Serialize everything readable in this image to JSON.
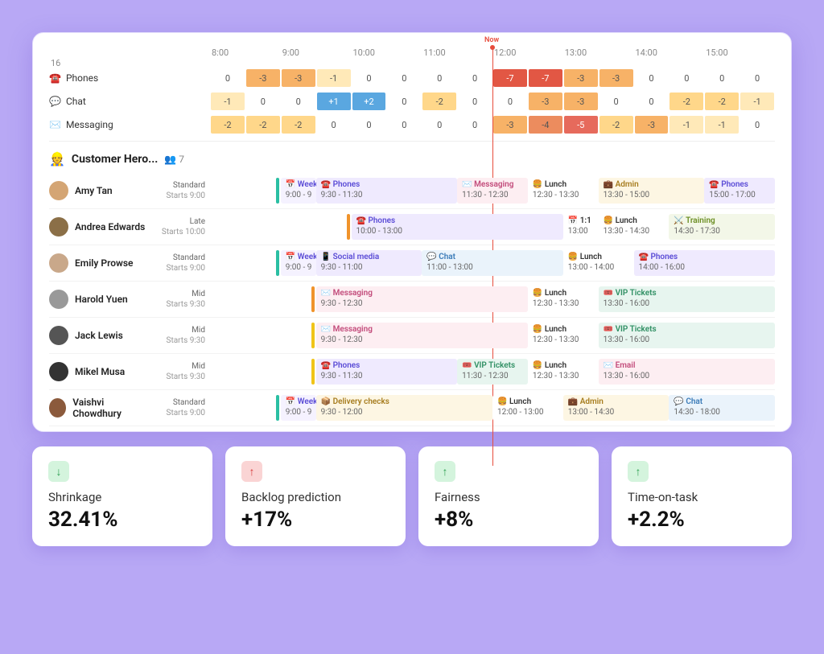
{
  "timeline": {
    "start": 8,
    "end": 16,
    "hours": [
      "8:00",
      "9:00",
      "10:00",
      "11:00",
      "12:00",
      "13:00",
      "14:00",
      "15:00",
      "16"
    ],
    "now_label": "Now",
    "now_pos": 0.5
  },
  "coverage_colors": {
    "zero": "#ffffff",
    "neg1": "#ffe9b8",
    "neg2": "#ffd78a",
    "neg3": "#f7b267",
    "neg5": "#e66a5c",
    "neg7": "#e25744",
    "pos": "#5aa7e0"
  },
  "coverage": [
    {
      "icon": "☎️",
      "label": "Phones",
      "cells": [
        {
          "v": "0"
        },
        {
          "v": "-3",
          "c": "#f7b267"
        },
        {
          "v": "-3",
          "c": "#f7b267"
        },
        {
          "v": "-1",
          "c": "#ffe9b8"
        },
        {
          "v": "0"
        },
        {
          "v": "0"
        },
        {
          "v": "0"
        },
        {
          "v": "0"
        },
        {
          "v": "-7",
          "c": "#e25744",
          "t": "#fff"
        },
        {
          "v": "-7",
          "c": "#e25744",
          "t": "#fff"
        },
        {
          "v": "-3",
          "c": "#f7b267"
        },
        {
          "v": "-3",
          "c": "#f7b267"
        },
        {
          "v": "0"
        },
        {
          "v": "0"
        },
        {
          "v": "0"
        },
        {
          "v": "0"
        }
      ]
    },
    {
      "icon": "💬",
      "label": "Chat",
      "cells": [
        {
          "v": "-1",
          "c": "#ffe9b8"
        },
        {
          "v": "0"
        },
        {
          "v": "0"
        },
        {
          "v": "+1",
          "c": "#5aa7e0",
          "t": "#fff"
        },
        {
          "v": "+2",
          "c": "#5aa7e0",
          "t": "#fff"
        },
        {
          "v": "0"
        },
        {
          "v": "-2",
          "c": "#ffd78a"
        },
        {
          "v": "0"
        },
        {
          "v": "0"
        },
        {
          "v": "-3",
          "c": "#f7b267"
        },
        {
          "v": "-3",
          "c": "#f7b267"
        },
        {
          "v": "0"
        },
        {
          "v": "0"
        },
        {
          "v": "-2",
          "c": "#ffd78a"
        },
        {
          "v": "-2",
          "c": "#ffd78a"
        },
        {
          "v": "-1",
          "c": "#ffe9b8"
        }
      ]
    },
    {
      "icon": "✉️",
      "label": "Messaging",
      "cells": [
        {
          "v": "-2",
          "c": "#ffd78a"
        },
        {
          "v": "-2",
          "c": "#ffd78a"
        },
        {
          "v": "-2",
          "c": "#ffd78a"
        },
        {
          "v": "0"
        },
        {
          "v": "0"
        },
        {
          "v": "0"
        },
        {
          "v": "0"
        },
        {
          "v": "0"
        },
        {
          "v": "-3",
          "c": "#f7b267"
        },
        {
          "v": "-4",
          "c": "#ec8c5e"
        },
        {
          "v": "-5",
          "c": "#e66a5c",
          "t": "#fff"
        },
        {
          "v": "-2",
          "c": "#ffd78a"
        },
        {
          "v": "-3",
          "c": "#f7b267"
        },
        {
          "v": "-1",
          "c": "#ffe9b8"
        },
        {
          "v": "-1",
          "c": "#ffe9b8"
        },
        {
          "v": "0"
        }
      ]
    }
  ],
  "team": {
    "icon": "👷",
    "name": "Customer Hero...",
    "count_icon": "👥",
    "count": "7"
  },
  "task_styles": {
    "week": {
      "bg": "#f5f2ff",
      "fg": "#5a4bd6"
    },
    "phones": {
      "bg": "#efeafe",
      "fg": "#5a4bd6"
    },
    "messaging": {
      "bg": "#fdeef2",
      "fg": "#c24a7a"
    },
    "lunch": {
      "bg": "#fff",
      "fg": "#333"
    },
    "admin": {
      "bg": "#fdf6e3",
      "fg": "#a67c1e"
    },
    "social": {
      "bg": "#efeafe",
      "fg": "#5a4bd6"
    },
    "chat": {
      "bg": "#eaf3fb",
      "fg": "#3a7bb8"
    },
    "vip": {
      "bg": "#e7f5ef",
      "fg": "#2f8f63"
    },
    "email": {
      "bg": "#fdeef2",
      "fg": "#c24a7a"
    },
    "delivery": {
      "bg": "#fdf6e3",
      "fg": "#a67c1e"
    },
    "oneonone": {
      "bg": "#fff",
      "fg": "#333"
    },
    "training": {
      "bg": "#f3f7e8",
      "fg": "#6b8e23"
    }
  },
  "agents": [
    {
      "name": "Amy Tan",
      "avatar": "#d4a574",
      "shift": {
        "label": "Standard",
        "starts": "Starts 9:00",
        "bar": "#2bbfa3"
      },
      "blocks": [
        {
          "icon": "📅",
          "title": "Week",
          "range": "9:00 - 9",
          "start": 9,
          "end": 9.5,
          "style": "week"
        },
        {
          "icon": "☎️",
          "title": "Phones",
          "range": "9:30 - 11:30",
          "start": 9.5,
          "end": 11.5,
          "style": "phones"
        },
        {
          "icon": "✉️",
          "title": "Messaging",
          "range": "11:30 - 12:30",
          "start": 11.5,
          "end": 12.5,
          "style": "messaging"
        },
        {
          "icon": "🍔",
          "title": "Lunch",
          "range": "12:30 - 13:30",
          "start": 12.5,
          "end": 13.5,
          "style": "lunch"
        },
        {
          "icon": "💼",
          "title": "Admin",
          "range": "13:30 - 15:00",
          "start": 13.5,
          "end": 15,
          "style": "admin"
        },
        {
          "icon": "☎️",
          "title": "Phones",
          "range": "15:00 - 17:00",
          "start": 15,
          "end": 16,
          "style": "phones"
        }
      ]
    },
    {
      "name": "Andrea Edwards",
      "avatar": "#8b6f47",
      "shift": {
        "label": "Late",
        "starts": "Starts 10:00",
        "bar": "#f0932b"
      },
      "blocks": [
        {
          "icon": "☎️",
          "title": "Phones",
          "range": "10:00 - 13:00",
          "start": 10,
          "end": 13,
          "style": "phones"
        },
        {
          "icon": "📅",
          "title": "1:1",
          "range": "13:00",
          "start": 13,
          "end": 13.5,
          "style": "oneonone"
        },
        {
          "icon": "🍔",
          "title": "Lunch",
          "range": "13:30 - 14:30",
          "start": 13.5,
          "end": 14.5,
          "style": "lunch"
        },
        {
          "icon": "⚔️",
          "title": "Training",
          "range": "14:30 - 17:30",
          "start": 14.5,
          "end": 16,
          "style": "training"
        }
      ]
    },
    {
      "name": "Emily Prowse",
      "avatar": "#c9a88a",
      "shift": {
        "label": "Standard",
        "starts": "Starts 9:00",
        "bar": "#2bbfa3"
      },
      "blocks": [
        {
          "icon": "📅",
          "title": "Week",
          "range": "9:00 - 9",
          "start": 9,
          "end": 9.5,
          "style": "week"
        },
        {
          "icon": "📱",
          "title": "Social media",
          "range": "9:30 - 11:00",
          "start": 9.5,
          "end": 11,
          "style": "social"
        },
        {
          "icon": "💬",
          "title": "Chat",
          "range": "11:00 - 13:00",
          "start": 11,
          "end": 13,
          "style": "chat"
        },
        {
          "icon": "🍔",
          "title": "Lunch",
          "range": "13:00 - 14:00",
          "start": 13,
          "end": 14,
          "style": "lunch"
        },
        {
          "icon": "☎️",
          "title": "Phones",
          "range": "14:00 - 16:00",
          "start": 14,
          "end": 16,
          "style": "phones"
        }
      ]
    },
    {
      "name": "Harold Yuen",
      "avatar": "#999",
      "shift": {
        "label": "Mid",
        "starts": "Starts 9:30",
        "bar": "#f0932b"
      },
      "blocks": [
        {
          "icon": "✉️",
          "title": "Messaging",
          "range": "9:30 - 12:30",
          "start": 9.5,
          "end": 12.5,
          "style": "messaging"
        },
        {
          "icon": "🍔",
          "title": "Lunch",
          "range": "12:30 - 13:30",
          "start": 12.5,
          "end": 13.5,
          "style": "lunch"
        },
        {
          "icon": "🎟️",
          "title": "VIP Tickets",
          "range": "13:30 - 16:00",
          "start": 13.5,
          "end": 16,
          "style": "vip"
        }
      ]
    },
    {
      "name": "Jack Lewis",
      "avatar": "#555",
      "shift": {
        "label": "Mid",
        "starts": "Starts 9:30",
        "bar": "#f0c419"
      },
      "blocks": [
        {
          "icon": "✉️",
          "title": "Messaging",
          "range": "9:30 - 12:30",
          "start": 9.5,
          "end": 12.5,
          "style": "messaging"
        },
        {
          "icon": "🍔",
          "title": "Lunch",
          "range": "12:30 - 13:30",
          "start": 12.5,
          "end": 13.5,
          "style": "lunch"
        },
        {
          "icon": "🎟️",
          "title": "VIP Tickets",
          "range": "13:30 - 16:00",
          "start": 13.5,
          "end": 16,
          "style": "vip"
        }
      ]
    },
    {
      "name": "Mikel Musa",
      "avatar": "#333",
      "shift": {
        "label": "Mid",
        "starts": "Starts 9:30",
        "bar": "#f0c419"
      },
      "blocks": [
        {
          "icon": "☎️",
          "title": "Phones",
          "range": "9:30 - 11:30",
          "start": 9.5,
          "end": 11.5,
          "style": "phones"
        },
        {
          "icon": "🎟️",
          "title": "VIP Tickets",
          "range": "11:30 - 12:30",
          "start": 11.5,
          "end": 12.5,
          "style": "vip"
        },
        {
          "icon": "🍔",
          "title": "Lunch",
          "range": "12:30 - 13:30",
          "start": 12.5,
          "end": 13.5,
          "style": "lunch"
        },
        {
          "icon": "✉️",
          "title": "Email",
          "range": "13:30 - 16:00",
          "start": 13.5,
          "end": 16,
          "style": "email"
        }
      ]
    },
    {
      "name": "Vaishvi Chowdhury",
      "avatar": "#8b5a3c",
      "shift": {
        "label": "Standard",
        "starts": "Starts 9:00",
        "bar": "#2bbfa3"
      },
      "blocks": [
        {
          "icon": "📅",
          "title": "Week",
          "range": "9:00 - 9",
          "start": 9,
          "end": 9.5,
          "style": "week"
        },
        {
          "icon": "📦",
          "title": "Delivery checks",
          "range": "9:30 - 12:00",
          "start": 9.5,
          "end": 12,
          "style": "delivery"
        },
        {
          "icon": "🍔",
          "title": "Lunch",
          "range": "12:00 - 13:00",
          "start": 12,
          "end": 13,
          "style": "lunch"
        },
        {
          "icon": "💼",
          "title": "Admin",
          "range": "13:00 - 14:30",
          "start": 13,
          "end": 14.5,
          "style": "admin"
        },
        {
          "icon": "💬",
          "title": "Chat",
          "range": "14:30 - 18:00",
          "start": 14.5,
          "end": 16,
          "style": "chat"
        }
      ]
    }
  ],
  "kpis": [
    {
      "dir": "down-g",
      "arrow": "↓",
      "title": "Shrinkage",
      "value": "32.41%"
    },
    {
      "dir": "up-r",
      "arrow": "↑",
      "title": "Backlog prediction",
      "value": "+17%"
    },
    {
      "dir": "up-g",
      "arrow": "↑",
      "title": "Fairness",
      "value": "+8%"
    },
    {
      "dir": "up-g",
      "arrow": "↑",
      "title": "Time-on-task",
      "value": "+2.2%"
    }
  ]
}
